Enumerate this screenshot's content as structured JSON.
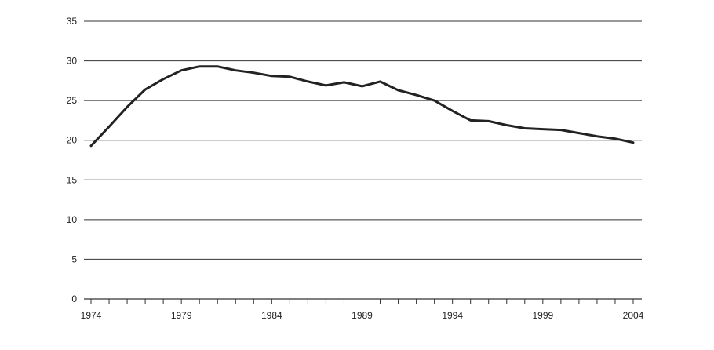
{
  "chart_data": {
    "type": "line",
    "title": "",
    "xlabel": "",
    "ylabel": "",
    "xlim": [
      1974,
      2004
    ],
    "ylim": [
      0,
      35
    ],
    "x_ticks": [
      "1974",
      "1979",
      "1984",
      "1989",
      "1994",
      "1999",
      "2004"
    ],
    "y_ticks": [
      "0",
      "5",
      "10",
      "15",
      "20",
      "25",
      "30",
      "35"
    ],
    "grid": "horizontal",
    "legend": "none",
    "line_color": "#222222",
    "series": [
      {
        "x": [
          1974,
          1975,
          1976,
          1977,
          1978,
          1979,
          1980,
          1981,
          1982,
          1983,
          1984,
          1985,
          1986,
          1987,
          1988,
          1989,
          1990,
          1991,
          1992,
          1993,
          1994,
          1995,
          1996,
          1997,
          1998,
          1999,
          2000,
          2001,
          2002,
          2003,
          2004
        ],
        "values": [
          19.3,
          21.7,
          24.2,
          26.4,
          27.7,
          28.8,
          29.3,
          29.3,
          28.8,
          28.5,
          28.1,
          28.0,
          27.4,
          26.9,
          27.3,
          26.8,
          27.4,
          26.3,
          25.7,
          25.0,
          23.7,
          22.5,
          22.4,
          21.9,
          21.5,
          21.4,
          21.3,
          20.9,
          20.5,
          20.2,
          19.7
        ]
      }
    ]
  }
}
